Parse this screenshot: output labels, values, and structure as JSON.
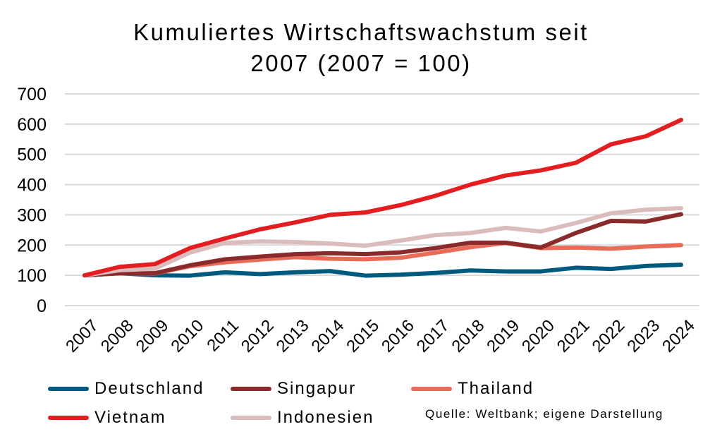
{
  "chart_data": {
    "type": "line",
    "title_line1": "Kumuliertes Wirtschaftswachstum seit",
    "title_line2": "2007 (2007 = 100)",
    "xlabel": "",
    "ylabel": "",
    "ylim": [
      0,
      700
    ],
    "yticks": [
      "0",
      "100",
      "200",
      "300",
      "400",
      "500",
      "600",
      "700"
    ],
    "grid": true,
    "legend_position": "bottom",
    "x": [
      "2007",
      "2008",
      "2009",
      "2010",
      "2011",
      "2012",
      "2013",
      "2014",
      "2015",
      "2016",
      "2017",
      "2018",
      "2019",
      "2020",
      "2021",
      "2022",
      "2023",
      "2024"
    ],
    "series": [
      {
        "name": "Deutschland",
        "color": "#005a7e",
        "values": [
          100,
          107,
          100,
          99,
          110,
          104,
          110,
          114,
          99,
          102,
          108,
          116,
          113,
          113,
          125,
          121,
          131,
          135
        ]
      },
      {
        "name": "Singapur",
        "color": "#8b2a2a",
        "values": [
          100,
          107,
          107,
          133,
          153,
          162,
          170,
          173,
          170,
          176,
          190,
          208,
          208,
          192,
          240,
          280,
          278,
          302
        ]
      },
      {
        "name": "Thailand",
        "color": "#e86c57",
        "values": [
          100,
          107,
          106,
          130,
          143,
          152,
          160,
          155,
          153,
          158,
          175,
          193,
          207,
          190,
          192,
          188,
          195,
          200
        ]
      },
      {
        "name": "Vietnam",
        "color": "#e41e20",
        "values": [
          100,
          128,
          137,
          190,
          222,
          252,
          275,
          300,
          308,
          332,
          363,
          400,
          430,
          447,
          472,
          533,
          560,
          614
        ]
      },
      {
        "name": "Indonesien",
        "color": "#dbbcbc",
        "values": [
          100,
          117,
          122,
          175,
          207,
          212,
          210,
          205,
          198,
          215,
          233,
          240,
          257,
          245,
          273,
          305,
          317,
          322
        ]
      }
    ],
    "source": "Quelle: Weltbank; eigene Darstellung"
  }
}
